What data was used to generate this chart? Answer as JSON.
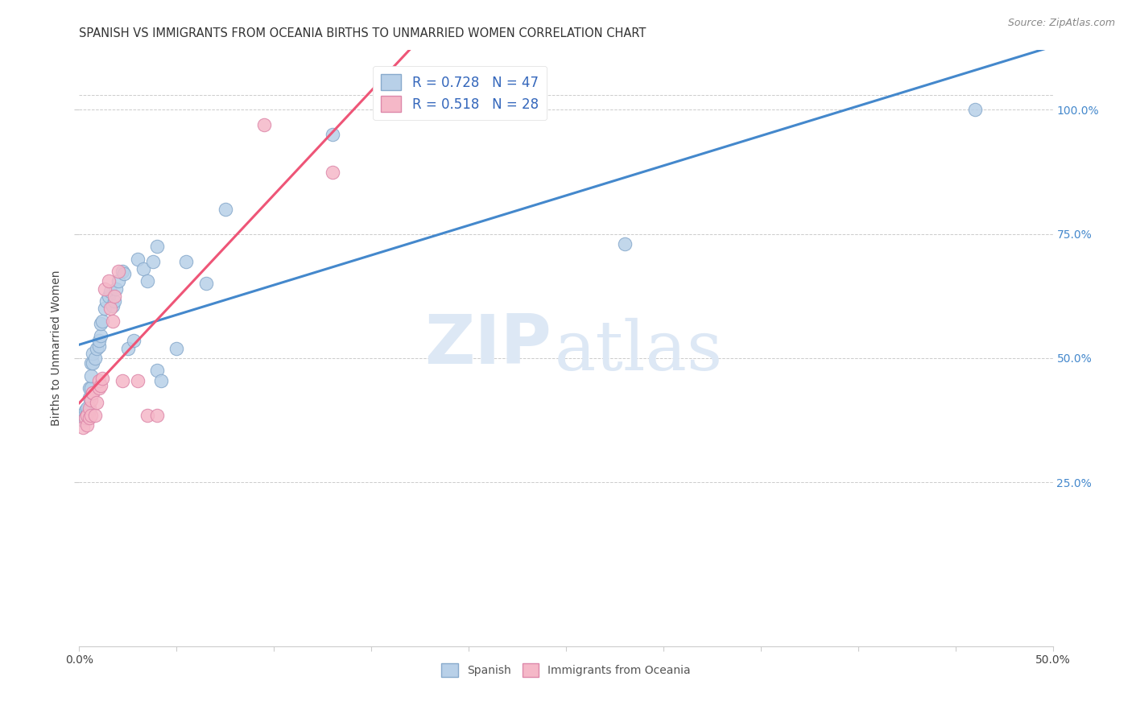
{
  "title": "SPANISH VS IMMIGRANTS FROM OCEANIA BIRTHS TO UNMARRIED WOMEN CORRELATION CHART",
  "source": "Source: ZipAtlas.com",
  "ylabel": "Births to Unmarried Women",
  "xlim": [
    0.0,
    0.5
  ],
  "ylim": [
    -0.08,
    1.12
  ],
  "ytick_positions": [
    0.25,
    0.5,
    0.75,
    1.0
  ],
  "ytick_labels": [
    "25.0%",
    "50.0%",
    "75.0%",
    "100.0%"
  ],
  "grid_color": "#cccccc",
  "background_color": "#ffffff",
  "spanish_color": "#b8d0e8",
  "oceania_color": "#f5b8c8",
  "spanish_line_color": "#4488cc",
  "oceania_line_color": "#ee5577",
  "legend_label_spanish_bottom": "Spanish",
  "legend_label_oceania_bottom": "Immigrants from Oceania",
  "spanish_R": 0.728,
  "spanish_N": 47,
  "oceania_R": 0.518,
  "oceania_N": 28,
  "spanish_points": [
    [
      0.001,
      0.385
    ],
    [
      0.002,
      0.375
    ],
    [
      0.003,
      0.38
    ],
    [
      0.003,
      0.395
    ],
    [
      0.004,
      0.39
    ],
    [
      0.004,
      0.4
    ],
    [
      0.005,
      0.395
    ],
    [
      0.005,
      0.42
    ],
    [
      0.005,
      0.44
    ],
    [
      0.006,
      0.44
    ],
    [
      0.006,
      0.465
    ],
    [
      0.006,
      0.49
    ],
    [
      0.007,
      0.49
    ],
    [
      0.007,
      0.51
    ],
    [
      0.008,
      0.5
    ],
    [
      0.009,
      0.52
    ],
    [
      0.01,
      0.525
    ],
    [
      0.01,
      0.535
    ],
    [
      0.011,
      0.545
    ],
    [
      0.011,
      0.57
    ],
    [
      0.012,
      0.575
    ],
    [
      0.013,
      0.6
    ],
    [
      0.014,
      0.615
    ],
    [
      0.015,
      0.625
    ],
    [
      0.016,
      0.635
    ],
    [
      0.017,
      0.605
    ],
    [
      0.018,
      0.615
    ],
    [
      0.019,
      0.64
    ],
    [
      0.02,
      0.655
    ],
    [
      0.022,
      0.675
    ],
    [
      0.023,
      0.67
    ],
    [
      0.025,
      0.52
    ],
    [
      0.028,
      0.535
    ],
    [
      0.03,
      0.7
    ],
    [
      0.033,
      0.68
    ],
    [
      0.035,
      0.655
    ],
    [
      0.038,
      0.695
    ],
    [
      0.04,
      0.725
    ],
    [
      0.04,
      0.475
    ],
    [
      0.042,
      0.455
    ],
    [
      0.05,
      0.52
    ],
    [
      0.055,
      0.695
    ],
    [
      0.065,
      0.65
    ],
    [
      0.075,
      0.8
    ],
    [
      0.13,
      0.95
    ],
    [
      0.28,
      0.73
    ],
    [
      0.46,
      1.0
    ]
  ],
  "oceania_points": [
    [
      0.002,
      0.36
    ],
    [
      0.003,
      0.38
    ],
    [
      0.004,
      0.365
    ],
    [
      0.004,
      0.385
    ],
    [
      0.005,
      0.38
    ],
    [
      0.005,
      0.4
    ],
    [
      0.006,
      0.385
    ],
    [
      0.006,
      0.415
    ],
    [
      0.007,
      0.43
    ],
    [
      0.007,
      0.43
    ],
    [
      0.008,
      0.385
    ],
    [
      0.009,
      0.41
    ],
    [
      0.01,
      0.44
    ],
    [
      0.01,
      0.455
    ],
    [
      0.011,
      0.445
    ],
    [
      0.012,
      0.46
    ],
    [
      0.013,
      0.64
    ],
    [
      0.015,
      0.655
    ],
    [
      0.016,
      0.6
    ],
    [
      0.017,
      0.575
    ],
    [
      0.018,
      0.625
    ],
    [
      0.02,
      0.675
    ],
    [
      0.022,
      0.455
    ],
    [
      0.03,
      0.455
    ],
    [
      0.035,
      0.385
    ],
    [
      0.04,
      0.385
    ],
    [
      0.095,
      0.97
    ],
    [
      0.13,
      0.875
    ]
  ],
  "watermark_zip": "ZIP",
  "watermark_atlas": "atlas",
  "title_fontsize": 10.5,
  "axis_label_fontsize": 10,
  "tick_fontsize": 10,
  "legend_fontsize": 12
}
